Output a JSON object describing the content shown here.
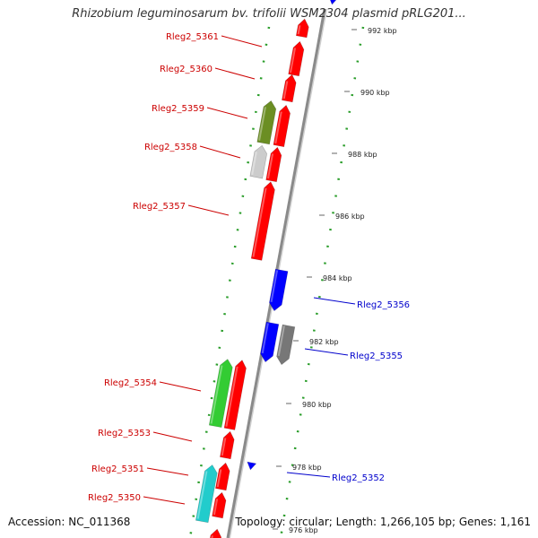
{
  "title": "Rhizobium leguminosarum bv. trifolii WSM2304 plasmid pRLG201...",
  "accession": "Accession: NC_011368",
  "summary": "Topology: circular; Length: 1,266,105 bp; Genes: 1,161",
  "colors": {
    "plus_strand": "#ff0000",
    "minus_strand": "#0000ff",
    "olive": "#6b8e23",
    "light_gray": "#cccccc",
    "green": "#33cc33",
    "cyan": "#22cccc",
    "dark_gray": "#777777",
    "label_red": "#cc0000",
    "label_blue": "#0000cc",
    "tick_green": "#2a9d2a"
  },
  "scale_ticks": [
    {
      "label": "992 kbp"
    },
    {
      "label": "990 kbp"
    },
    {
      "label": "988 kbp"
    },
    {
      "label": "986 kbp"
    },
    {
      "label": "984 kbp"
    },
    {
      "label": "982 kbp"
    },
    {
      "label": "980 kbp"
    },
    {
      "label": "978 kbp"
    },
    {
      "label": "976 kbp"
    }
  ],
  "gene_labels_left": [
    {
      "text": "Rleg2_5361"
    },
    {
      "text": "Rleg2_5360"
    },
    {
      "text": "Rleg2_5359"
    },
    {
      "text": "Rleg2_5358"
    },
    {
      "text": "Rleg2_5357"
    },
    {
      "text": "Rleg2_5354"
    },
    {
      "text": "Rleg2_5353"
    },
    {
      "text": "Rleg2_5351"
    },
    {
      "text": "Rleg2_5350"
    }
  ],
  "gene_labels_right": [
    {
      "text": "Rleg2_5356"
    },
    {
      "text": "Rleg2_5355"
    },
    {
      "text": "Rleg2_5352"
    }
  ]
}
